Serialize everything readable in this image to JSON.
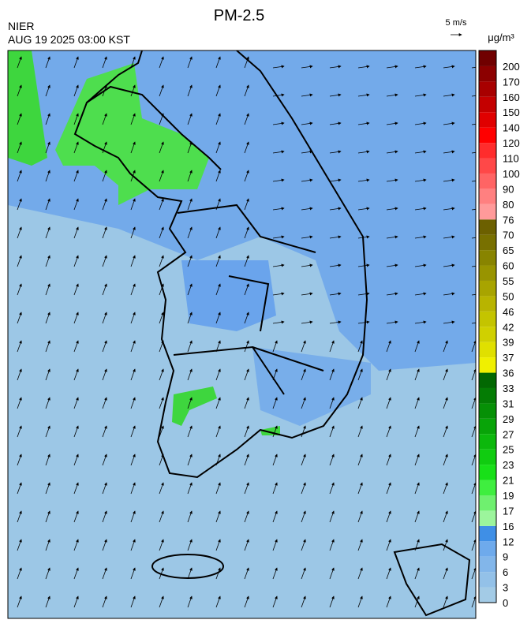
{
  "title": "PM-2.5",
  "agency": "NIER",
  "timestamp": "AUG 19 2025 03:00 KST",
  "wind_scale": "5 m/s",
  "unit": "μg/m³",
  "colorbar": {
    "levels": [
      0,
      3,
      6,
      9,
      12,
      16,
      17,
      19,
      21,
      23,
      25,
      27,
      29,
      31,
      33,
      36,
      37,
      39,
      42,
      46,
      50,
      55,
      60,
      65,
      70,
      76,
      80,
      90,
      100,
      110,
      120,
      140,
      150,
      160,
      170,
      200
    ],
    "colors": [
      "#a3cbe6",
      "#93c1e8",
      "#82b6ea",
      "#6eaaec",
      "#3f8fe6",
      "#9cf59c",
      "#6ff06f",
      "#3fee3f",
      "#18e018",
      "#10cc10",
      "#0cb80c",
      "#08a408",
      "#069006",
      "#047c04",
      "#026802",
      "#f0f000",
      "#e0e000",
      "#d0d000",
      "#c4c400",
      "#b8b400",
      "#a8a400",
      "#989400",
      "#888400",
      "#787000",
      "#6c6000",
      "#ff9a9a",
      "#ff8080",
      "#ff6464",
      "#ff4848",
      "#ff2c2c",
      "#ff0000",
      "#e00000",
      "#c40000",
      "#a80000",
      "#8c0000",
      "#700000"
    ]
  }
}
